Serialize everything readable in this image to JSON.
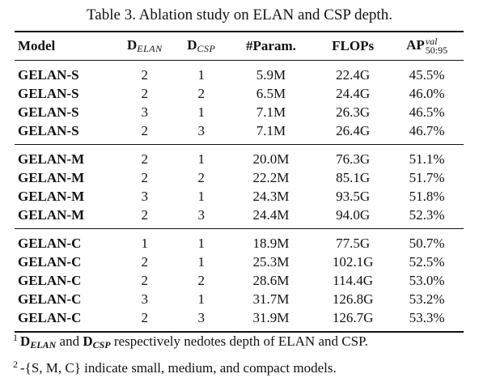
{
  "caption": "Table 3. Ablation study on ELAN and CSP depth.",
  "table": {
    "headers": {
      "model": "Model",
      "d_elan_base": "D",
      "d_elan_sub": "ELAN",
      "d_csp_base": "D",
      "d_csp_sub": "CSP",
      "params": "#Param.",
      "flops": "FLOPs",
      "ap_base": "AP",
      "ap_sup": "val",
      "ap_sub": "50:95"
    },
    "groups": [
      {
        "rows": [
          {
            "model": "GELAN-S",
            "d_elan": "2",
            "d_csp": "1",
            "params": "5.9M",
            "flops": "22.4G",
            "ap": "45.5%"
          },
          {
            "model": "GELAN-S",
            "d_elan": "2",
            "d_csp": "2",
            "params": "6.5M",
            "flops": "24.4G",
            "ap": "46.0%"
          },
          {
            "model": "GELAN-S",
            "d_elan": "3",
            "d_csp": "1",
            "params": "7.1M",
            "flops": "26.3G",
            "ap": "46.5%"
          },
          {
            "model": "GELAN-S",
            "d_elan": "2",
            "d_csp": "3",
            "params": "7.1M",
            "flops": "26.4G",
            "ap": "46.7%"
          }
        ]
      },
      {
        "rows": [
          {
            "model": "GELAN-M",
            "d_elan": "2",
            "d_csp": "1",
            "params": "20.0M",
            "flops": "76.3G",
            "ap": "51.1%"
          },
          {
            "model": "GELAN-M",
            "d_elan": "2",
            "d_csp": "2",
            "params": "22.2M",
            "flops": "85.1G",
            "ap": "51.7%"
          },
          {
            "model": "GELAN-M",
            "d_elan": "3",
            "d_csp": "1",
            "params": "24.3M",
            "flops": "93.5G",
            "ap": "51.8%"
          },
          {
            "model": "GELAN-M",
            "d_elan": "2",
            "d_csp": "3",
            "params": "24.4M",
            "flops": "94.0G",
            "ap": "52.3%"
          }
        ]
      },
      {
        "rows": [
          {
            "model": "GELAN-C",
            "d_elan": "1",
            "d_csp": "1",
            "params": "18.9M",
            "flops": "77.5G",
            "ap": "50.7%"
          },
          {
            "model": "GELAN-C",
            "d_elan": "2",
            "d_csp": "1",
            "params": "25.3M",
            "flops": "102.1G",
            "ap": "52.5%"
          },
          {
            "model": "GELAN-C",
            "d_elan": "2",
            "d_csp": "2",
            "params": "28.6M",
            "flops": "114.4G",
            "ap": "53.0%"
          },
          {
            "model": "GELAN-C",
            "d_elan": "3",
            "d_csp": "1",
            "params": "31.7M",
            "flops": "126.8G",
            "ap": "53.2%"
          },
          {
            "model": "GELAN-C",
            "d_elan": "2",
            "d_csp": "3",
            "params": "31.9M",
            "flops": "126.7G",
            "ap": "53.3%"
          }
        ]
      }
    ]
  },
  "footnotes": {
    "note1": {
      "mark": "1",
      "d_base": "D",
      "d_elan_sub": "ELAN",
      "and": "and",
      "d_csp_sub": "CSP",
      "rest": "respectively nedotes depth of ELAN and CSP."
    },
    "note2": {
      "mark": "2",
      "text": "-{S, M, C} indicate small, medium, and compact models."
    }
  }
}
